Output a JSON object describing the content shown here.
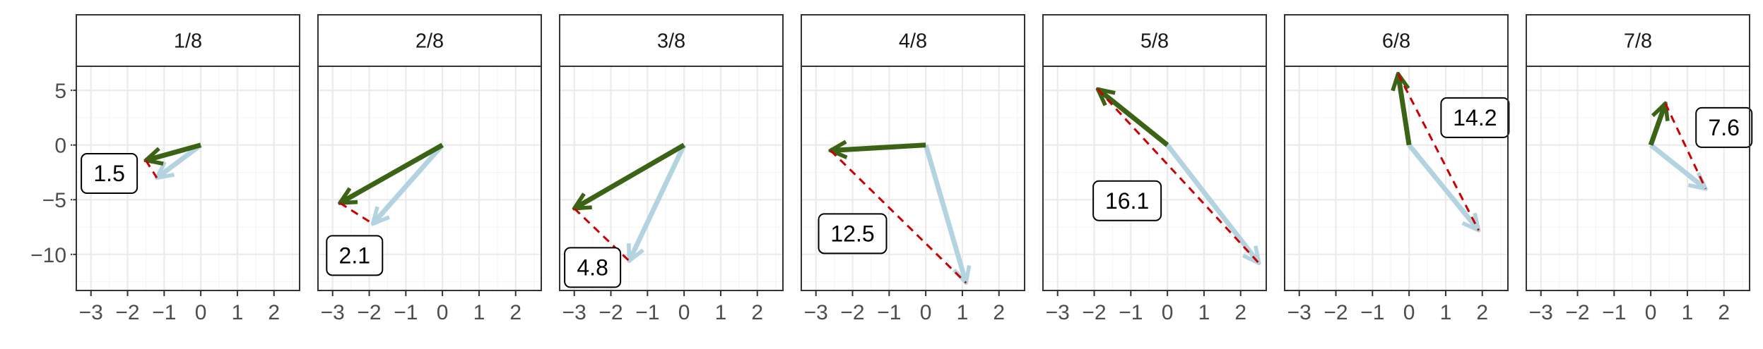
{
  "colors": {
    "green_arrow": "#3b6315",
    "blue_arrow": "#b4d3e1",
    "red_dashed": "#cc0000",
    "panel_border": "#333333",
    "strip_fill": "#ffffff",
    "grid_major": "#ebebeb",
    "grid_minor": "#f5f5f5",
    "tick_text": "#4d4d4d"
  },
  "chart_data": {
    "type": "vector-facets",
    "xlim": [
      -3.4,
      2.7
    ],
    "ylim": [
      -13.3,
      7.2
    ],
    "x_ticks": [
      -3,
      -2,
      -1,
      0,
      1,
      2
    ],
    "x_tick_labels": [
      "−3",
      "−2",
      "−1",
      "0",
      "1",
      "2"
    ],
    "y_ticks": [
      5,
      0,
      -5,
      -10
    ],
    "y_tick_labels": [
      "5",
      "0",
      "−5",
      "−10"
    ],
    "grid": true,
    "panels": [
      {
        "title": "1/8",
        "green_end": [
          -1.5,
          -1.4
        ],
        "blue_end": [
          -1.2,
          -3.0
        ],
        "label": "1.5",
        "label_pos": [
          -2.5,
          -2.6
        ]
      },
      {
        "title": "2/8",
        "green_end": [
          -2.8,
          -5.3
        ],
        "blue_end": [
          -1.9,
          -7.2
        ],
        "label": "2.1",
        "label_pos": [
          -2.4,
          -10.1
        ]
      },
      {
        "title": "3/8",
        "green_end": [
          -3.0,
          -5.8
        ],
        "blue_end": [
          -1.5,
          -10.6
        ],
        "label": "4.8",
        "label_pos": [
          -2.5,
          -11.2
        ]
      },
      {
        "title": "4/8",
        "green_end": [
          -2.6,
          -0.5
        ],
        "blue_end": [
          1.1,
          -12.6
        ],
        "label": "12.5",
        "label_pos": [
          -2.0,
          -8.1
        ]
      },
      {
        "title": "5/8",
        "green_end": [
          -1.9,
          5.1
        ],
        "blue_end": [
          2.5,
          -10.8
        ],
        "label": "16.1",
        "label_pos": [
          -1.1,
          -5.1
        ]
      },
      {
        "title": "6/8",
        "green_end": [
          -0.3,
          6.5
        ],
        "blue_end": [
          1.9,
          -7.8
        ],
        "label": "14.2",
        "label_pos": [
          1.8,
          2.5
        ]
      },
      {
        "title": "7/8",
        "green_end": [
          0.4,
          3.8
        ],
        "blue_end": [
          1.5,
          -4.0
        ],
        "label": "7.6",
        "label_pos": [
          2.0,
          1.6
        ]
      }
    ]
  }
}
